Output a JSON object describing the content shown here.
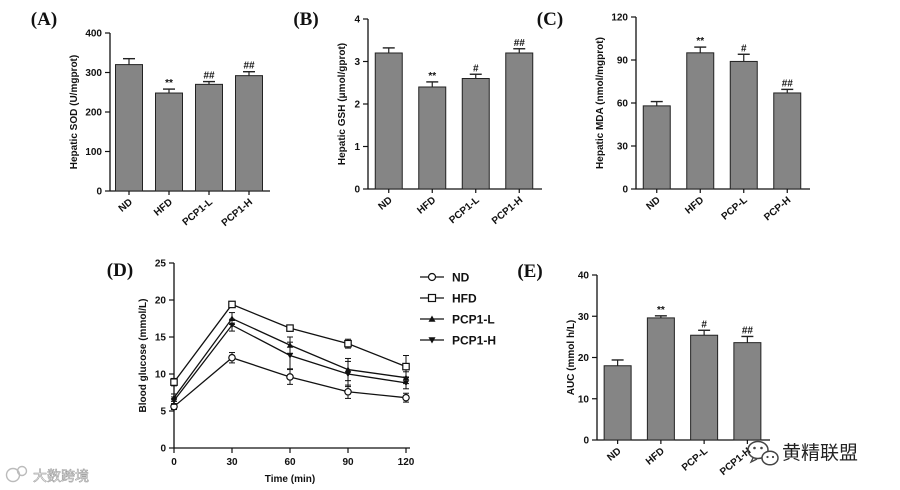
{
  "chart_data": [
    {
      "panel": "(A)",
      "type": "bar",
      "categories": [
        "ND",
        "HFD",
        "PCP1-L",
        "PCP1-H"
      ],
      "values": [
        320,
        248,
        270,
        292
      ],
      "errors": [
        15,
        10,
        7,
        10
      ],
      "significance": [
        "",
        "**",
        "##",
        "##"
      ],
      "ylabel": "Hepatic SOD (U/mgprot)",
      "ylim": [
        0,
        400
      ],
      "yticks": [
        0,
        100,
        200,
        300,
        400
      ],
      "tick_labels": [
        "0",
        "100",
        "200",
        "300",
        "400"
      ]
    },
    {
      "panel": "(B)",
      "type": "bar",
      "categories": [
        "ND",
        "HFD",
        "PCP1-L",
        "PCP1-H"
      ],
      "values": [
        3.2,
        2.4,
        2.6,
        3.2
      ],
      "errors": [
        0.12,
        0.12,
        0.1,
        0.1
      ],
      "significance": [
        "",
        "**",
        "#",
        "##"
      ],
      "ylabel": "Hepatic GSH (μmol/gprot)",
      "ylim": [
        0,
        4
      ],
      "yticks": [
        0,
        1,
        2,
        3,
        4
      ],
      "tick_labels": [
        "0",
        "1",
        "2",
        "3",
        "4"
      ]
    },
    {
      "panel": "(C)",
      "type": "bar",
      "categories": [
        "ND",
        "HFD",
        "PCP-L",
        "PCP-H"
      ],
      "values": [
        58,
        95,
        89,
        67
      ],
      "errors": [
        3,
        4,
        5,
        2.5
      ],
      "significance": [
        "",
        "**",
        "#",
        "##"
      ],
      "ylabel": "Hepatic MDA (nmol/mgprot)",
      "ylim": [
        0,
        120
      ],
      "yticks": [
        0,
        30,
        60,
        90,
        120
      ],
      "tick_labels": [
        "0",
        "30",
        "60",
        "90",
        "120"
      ]
    },
    {
      "panel": "(D)",
      "type": "line",
      "x": [
        0,
        30,
        60,
        90,
        120
      ],
      "xticks": [
        "0",
        "30",
        "60",
        "90",
        "120"
      ],
      "xlabel": "Time (min)",
      "ylabel": "Blood glucose (mmol/L)",
      "ylim": [
        0,
        25
      ],
      "yticks": [
        0,
        5,
        10,
        15,
        20,
        25
      ],
      "tick_labels": [
        "0",
        "5",
        "10",
        "15",
        "20",
        "25"
      ],
      "series": [
        {
          "name": "ND",
          "marker": "circle",
          "values": [
            5.6,
            12.2,
            9.6,
            7.6,
            6.8
          ],
          "errors": [
            0.4,
            0.7,
            1.0,
            0.9,
            0.6
          ]
        },
        {
          "name": "HFD",
          "marker": "square",
          "values": [
            8.9,
            19.4,
            16.2,
            14.1,
            11.0
          ],
          "errors": [
            0.5,
            0.4,
            0.4,
            0.6,
            1.5
          ]
        },
        {
          "name": "PCP1-L",
          "marker": "triangle-up",
          "values": [
            6.8,
            17.5,
            13.9,
            10.6,
            9.5
          ],
          "errors": [
            0.5,
            0.8,
            1.1,
            1.5,
            0.8
          ]
        },
        {
          "name": "PCP1-H",
          "marker": "triangle-down",
          "values": [
            6.4,
            16.6,
            12.5,
            10.0,
            8.8
          ],
          "errors": [
            0.5,
            0.8,
            1.8,
            1.7,
            0.8
          ]
        }
      ]
    },
    {
      "panel": "(E)",
      "type": "bar",
      "categories": [
        "ND",
        "HFD",
        "PCP-L",
        "PCP1-H"
      ],
      "values": [
        18,
        29.6,
        25.4,
        23.6
      ],
      "errors": [
        1.4,
        0.5,
        1.2,
        1.5
      ],
      "significance": [
        "",
        "**",
        "#",
        "##"
      ],
      "ylabel": "AUC (mmol h/L)",
      "ylim": [
        0,
        40
      ],
      "yticks": [
        0,
        10,
        20,
        30,
        40
      ],
      "tick_labels": [
        "0",
        "10",
        "20",
        "30",
        "40"
      ]
    }
  ],
  "watermarks": {
    "left": "大数跨境",
    "right": "黄精联盟"
  },
  "colors": {
    "bar_fill": "#858585",
    "axis": "#111111",
    "line": "#111111"
  }
}
